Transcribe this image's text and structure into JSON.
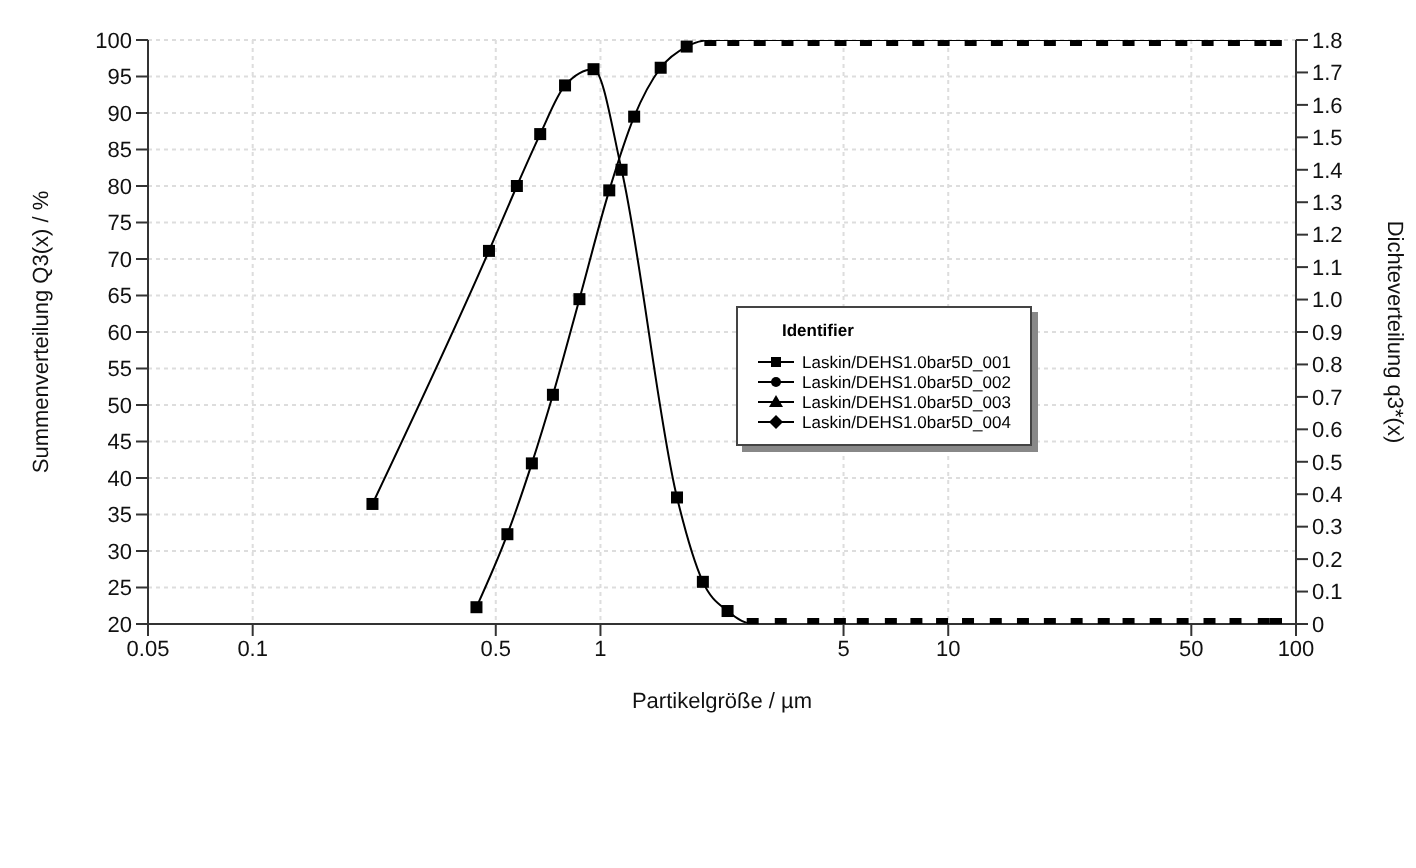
{
  "chart_data": {
    "type": "line",
    "xlabel": "Partikelgröße / µm",
    "ylabel": "Summenverteilung Q3(x) / %",
    "y2label": "Dichteverteilung q3*(x)",
    "legend_title": "Identifier",
    "log": "x",
    "grid": true,
    "legend": "right",
    "line_style": "solid",
    "xlim": [
      0.05,
      100
    ],
    "xticks": [
      0.05,
      0.1,
      0.5,
      1,
      5,
      10,
      50,
      100
    ],
    "ylim": [
      20,
      100
    ],
    "yticks": [
      20,
      25,
      30,
      35,
      40,
      45,
      50,
      55,
      60,
      65,
      70,
      75,
      80,
      85,
      90,
      95,
      100
    ],
    "y2lim": [
      0,
      1.8
    ],
    "y2ticks": [
      0,
      0.1,
      0.2,
      0.3,
      0.4,
      0.5,
      0.6,
      0.7,
      0.8,
      0.9,
      {
        "value": 1,
        "label": "1.0"
      },
      1.1,
      1.2,
      1.3,
      1.4,
      1.5,
      1.6,
      1.7,
      1.8
    ],
    "series": [
      {
        "name": "Laskin/DEHS1.0bar5D_001",
        "color": "#000000",
        "marker": "square",
        "x": [
          0.44,
          0.54,
          0.635,
          0.73,
          0.87,
          1.06,
          1.25,
          1.49,
          1.77,
          2.07,
          2.41,
          2.87,
          3.45,
          4.1,
          4.9,
          5.8,
          6.9,
          8.2,
          9.7,
          11.6,
          13.8,
          16.4,
          19.6,
          23.3,
          27.7,
          33,
          39.3,
          46.8,
          55.7,
          66.3,
          79,
          87.5
        ],
        "values": [
          22.3,
          32.3,
          42,
          51.4,
          64.5,
          79.4,
          89.5,
          96.2,
          99.1,
          100,
          100,
          100,
          100,
          100,
          100,
          100,
          100,
          100,
          100,
          100,
          100,
          100,
          100,
          100,
          100,
          100,
          100,
          100,
          100,
          100,
          100,
          100
        ]
      },
      {
        "name": "Laskin/DEHS1.0bar5D_002",
        "color": "#000000",
        "marker": "circle"
      },
      {
        "name": "Laskin/DEHS1.0bar5D_003",
        "color": "#000000",
        "marker": "triangle"
      },
      {
        "name": "Laskin/DEHS1.0bar5D_004",
        "color": "#000000",
        "marker": "diamond"
      },
      {
        "color": "#000000",
        "marker": "square",
        "axis": "y2",
        "x": [
          0.221,
          0.478,
          0.575,
          0.671,
          0.791,
          0.955,
          1.15,
          1.66,
          1.97,
          2.32,
          2.74,
          3.3,
          4.09,
          4.88,
          5.68,
          6.84,
          8.1,
          9.6,
          11.4,
          13.7,
          16.4,
          19.6,
          23.4,
          28,
          33,
          39.5,
          47.2,
          56.4,
          67,
          80.8,
          87.6
        ],
        "values": [
          0.37,
          1.15,
          1.35,
          1.51,
          1.66,
          1.71,
          1.4,
          0.39,
          0.13,
          0.04,
          0,
          0,
          0,
          0,
          0,
          0,
          0,
          0,
          0,
          0,
          0,
          0,
          0,
          0,
          0,
          0,
          0,
          0,
          0,
          0,
          0
        ]
      }
    ]
  }
}
